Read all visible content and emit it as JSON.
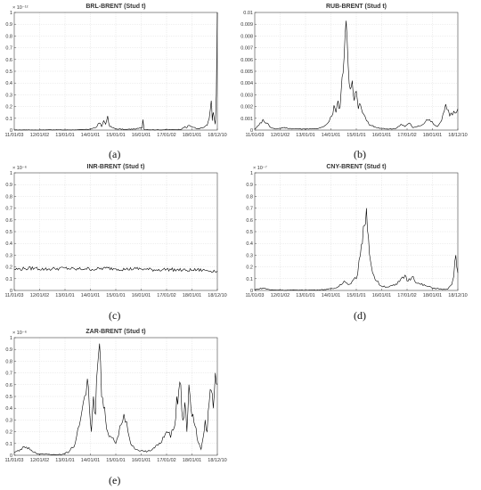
{
  "chart_data": [
    {
      "type": "line",
      "caption": "(a)",
      "title": "BRL-BRENT (Stud t)",
      "exponent": "× 10⁻¹²",
      "x_ticks": [
        "11/01/03",
        "12/01/02",
        "13/01/01",
        "14/01/01",
        "15/01/01",
        "16/01/01",
        "17/01/02",
        "18/01/01",
        "18/12/10"
      ],
      "ylim": [
        0,
        1
      ],
      "y_ticks": [
        "0",
        "0.1",
        "0.2",
        "0.3",
        "0.4",
        "0.5",
        "0.6",
        "0.7",
        "0.8",
        "0.9",
        "1"
      ],
      "grid": true,
      "series": [
        {
          "x": [
            0,
            0.06,
            0.12,
            0.18,
            0.24,
            0.3,
            0.36,
            0.4,
            0.42,
            0.43,
            0.44,
            0.45,
            0.46,
            0.47,
            0.5,
            0.55,
            0.6,
            0.63,
            0.633,
            0.64,
            0.7,
            0.76,
            0.82,
            0.83,
            0.84,
            0.85,
            0.86,
            0.9,
            0.93,
            0.95,
            0.96,
            0.97,
            0.975,
            0.98,
            0.99,
            0.995,
            1.0
          ],
          "values": [
            0,
            0.002,
            0,
            0.003,
            0.001,
            0.002,
            0.005,
            0.02,
            0.06,
            0.03,
            0.08,
            0.05,
            0.12,
            0.03,
            0.01,
            0.005,
            0.01,
            0.02,
            0.09,
            0.005,
            0.002,
            0.003,
            0.005,
            0.02,
            0.03,
            0.02,
            0.04,
            0.01,
            0.02,
            0.04,
            0.1,
            0.25,
            0.08,
            0.15,
            0.05,
            0.3,
            1.0
          ]
        }
      ]
    },
    {
      "type": "line",
      "caption": "(b)",
      "title": "RUB-BRENT (Stud t)",
      "exponent": "",
      "x_ticks": [
        "11/01/03",
        "12/01/02",
        "13/01/01",
        "14/01/01",
        "15/01/01",
        "16/01/01",
        "17/01/02",
        "18/01/01",
        "18/12/10"
      ],
      "ylim": [
        0,
        0.01
      ],
      "y_ticks": [
        "0",
        "0.001",
        "0.002",
        "0.003",
        "0.004",
        "0.005",
        "0.006",
        "0.007",
        "0.008",
        "0.009",
        "0.01"
      ],
      "grid": true,
      "series": [
        {
          "x": [
            0,
            0.02,
            0.04,
            0.06,
            0.08,
            0.1,
            0.14,
            0.2,
            0.26,
            0.3,
            0.34,
            0.36,
            0.38,
            0.39,
            0.4,
            0.41,
            0.42,
            0.43,
            0.44,
            0.45,
            0.46,
            0.47,
            0.48,
            0.49,
            0.5,
            0.51,
            0.52,
            0.53,
            0.55,
            0.57,
            0.6,
            0.64,
            0.68,
            0.7,
            0.72,
            0.74,
            0.76,
            0.78,
            0.8,
            0.82,
            0.84,
            0.86,
            0.88,
            0.9,
            0.92,
            0.94,
            0.96,
            0.98,
            1.0
          ],
          "values": [
            0.0001,
            0.0004,
            0.0009,
            0.0006,
            0.0002,
            0.0001,
            0.0002,
            0.0001,
            0.0001,
            0.0001,
            0.0003,
            0.0006,
            0.0012,
            0.0021,
            0.0015,
            0.0025,
            0.0019,
            0.0045,
            0.0062,
            0.0093,
            0.0055,
            0.0035,
            0.0042,
            0.0025,
            0.0033,
            0.0018,
            0.0022,
            0.0015,
            0.0008,
            0.0004,
            0.0002,
            0.0001,
            0.0001,
            0.0002,
            0.0005,
            0.0003,
            0.0006,
            0.0002,
            0.0003,
            0.0004,
            0.0007,
            0.0009,
            0.0005,
            0.0003,
            0.0008,
            0.0022,
            0.0012,
            0.0016,
            0.0018
          ]
        }
      ]
    },
    {
      "type": "line",
      "caption": "(c)",
      "title": "INR-BRENT (Stud t)",
      "exponent": "× 10⁻⁶",
      "x_ticks": [
        "11/01/03",
        "12/01/02",
        "13/01/01",
        "14/01/01",
        "15/01/01",
        "16/01/01",
        "17/01/02",
        "18/01/01",
        "18/12/10"
      ],
      "ylim": [
        0,
        1
      ],
      "y_ticks": [
        "0",
        "0.1",
        "0.2",
        "0.3",
        "0.4",
        "0.5",
        "0.6",
        "0.7",
        "0.8",
        "0.9",
        "1"
      ],
      "grid": true,
      "series": [
        {
          "x": [
            0,
            0.05,
            0.1,
            0.15,
            0.2,
            0.25,
            0.3,
            0.35,
            0.4,
            0.45,
            0.5,
            0.55,
            0.6,
            0.65,
            0.7,
            0.75,
            0.8,
            0.85,
            0.9,
            0.95,
            1.0
          ],
          "values": [
            0.18,
            0.185,
            0.19,
            0.18,
            0.185,
            0.19,
            0.18,
            0.185,
            0.18,
            0.19,
            0.185,
            0.18,
            0.185,
            0.18,
            0.175,
            0.18,
            0.175,
            0.17,
            0.175,
            0.17,
            0.165
          ]
        }
      ]
    },
    {
      "type": "line",
      "caption": "(d)",
      "title": "CNY-BRENT (Stud t)",
      "exponent": "× 10⁻⁷",
      "x_ticks": [
        "11/01/03",
        "12/01/02",
        "13/01/01",
        "14/01/01",
        "15/01/01",
        "16/01/01",
        "17/01/02",
        "18/01/01",
        "18/12/10"
      ],
      "ylim": [
        0,
        1
      ],
      "y_ticks": [
        "0",
        "0.1",
        "0.2",
        "0.3",
        "0.4",
        "0.5",
        "0.6",
        "0.7",
        "0.8",
        "0.9",
        "1"
      ],
      "grid": true,
      "series": [
        {
          "x": [
            0,
            0.04,
            0.08,
            0.14,
            0.2,
            0.26,
            0.32,
            0.36,
            0.4,
            0.42,
            0.44,
            0.46,
            0.48,
            0.5,
            0.52,
            0.53,
            0.54,
            0.55,
            0.56,
            0.57,
            0.58,
            0.6,
            0.62,
            0.66,
            0.7,
            0.72,
            0.74,
            0.75,
            0.76,
            0.78,
            0.8,
            0.84,
            0.88,
            0.92,
            0.95,
            0.97,
            0.98,
            0.99,
            1.0
          ],
          "values": [
            0.005,
            0.02,
            0.005,
            0.002,
            0.003,
            0.002,
            0.005,
            0.01,
            0.02,
            0.05,
            0.08,
            0.05,
            0.08,
            0.1,
            0.3,
            0.4,
            0.55,
            0.7,
            0.45,
            0.25,
            0.15,
            0.08,
            0.04,
            0.03,
            0.05,
            0.1,
            0.13,
            0.08,
            0.1,
            0.12,
            0.06,
            0.04,
            0.02,
            0.01,
            0.01,
            0.05,
            0.12,
            0.3,
            0.15
          ]
        }
      ]
    },
    {
      "type": "line",
      "caption": "(e)",
      "title": "ZAR-BRENT (Stud t)",
      "exponent": "× 10⁻⁶",
      "x_ticks": [
        "11/01/03",
        "12/01/02",
        "13/01/01",
        "14/01/01",
        "15/01/01",
        "16/01/01",
        "17/01/02",
        "18/01/01",
        "18/12/10"
      ],
      "ylim": [
        0,
        1
      ],
      "y_ticks": [
        "0",
        "0.1",
        "0.2",
        "0.3",
        "0.4",
        "0.5",
        "0.6",
        "0.7",
        "0.8",
        "0.9",
        "1"
      ],
      "grid": true,
      "series": [
        {
          "x": [
            0,
            0.03,
            0.06,
            0.09,
            0.12,
            0.16,
            0.2,
            0.24,
            0.27,
            0.3,
            0.32,
            0.34,
            0.36,
            0.37,
            0.38,
            0.39,
            0.4,
            0.41,
            0.42,
            0.43,
            0.44,
            0.45,
            0.46,
            0.48,
            0.5,
            0.52,
            0.54,
            0.56,
            0.58,
            0.6,
            0.64,
            0.68,
            0.72,
            0.75,
            0.77,
            0.79,
            0.8,
            0.81,
            0.82,
            0.83,
            0.84,
            0.85,
            0.86,
            0.87,
            0.88,
            0.89,
            0.9,
            0.91,
            0.92,
            0.93,
            0.94,
            0.95,
            0.96,
            0.97,
            0.98,
            0.99,
            1.0
          ],
          "values": [
            0.02,
            0.05,
            0.07,
            0.03,
            0.01,
            0.01,
            0.005,
            0.01,
            0.03,
            0.1,
            0.25,
            0.45,
            0.65,
            0.4,
            0.2,
            0.5,
            0.35,
            0.75,
            0.95,
            0.5,
            0.4,
            0.3,
            0.2,
            0.15,
            0.1,
            0.25,
            0.35,
            0.2,
            0.08,
            0.05,
            0.03,
            0.05,
            0.1,
            0.2,
            0.15,
            0.25,
            0.5,
            0.55,
            0.6,
            0.3,
            0.45,
            0.2,
            0.6,
            0.4,
            0.35,
            0.25,
            0.15,
            0.1,
            0.05,
            0.15,
            0.3,
            0.2,
            0.45,
            0.55,
            0.4,
            0.7,
            0.6
          ]
        }
      ]
    }
  ]
}
